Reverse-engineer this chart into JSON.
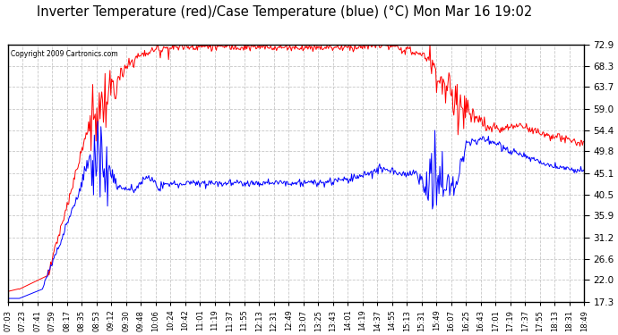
{
  "title": "Inverter Temperature (red)/Case Temperature (blue) (°C) Mon Mar 16 19:02",
  "copyright": "Copyright 2009 Cartronics.com",
  "background_color": "#ffffff",
  "plot_background": "#ffffff",
  "grid_color": "#c8c8c8",
  "grid_style": "--",
  "yticks": [
    17.3,
    22.0,
    26.6,
    31.2,
    35.9,
    40.5,
    45.1,
    49.8,
    54.4,
    59.0,
    63.7,
    68.3,
    72.9
  ],
  "ylim": [
    17.3,
    72.9
  ],
  "red_color": "#ff0000",
  "blue_color": "#0000ff",
  "xtick_fontsize": 6.0,
  "ytick_fontsize": 7.5,
  "title_fontsize": 10.5,
  "n_points": 700,
  "xtick_labels": [
    "07:03",
    "07:23",
    "07:41",
    "07:59",
    "08:17",
    "08:35",
    "08:53",
    "09:12",
    "09:30",
    "09:48",
    "10:06",
    "10:24",
    "10:42",
    "11:01",
    "11:19",
    "11:37",
    "11:55",
    "12:13",
    "12:31",
    "12:49",
    "13:07",
    "13:25",
    "13:43",
    "14:01",
    "14:19",
    "14:37",
    "14:55",
    "15:13",
    "15:31",
    "15:49",
    "16:07",
    "16:25",
    "16:43",
    "17:01",
    "17:19",
    "17:37",
    "17:55",
    "18:13",
    "18:31",
    "18:49"
  ]
}
